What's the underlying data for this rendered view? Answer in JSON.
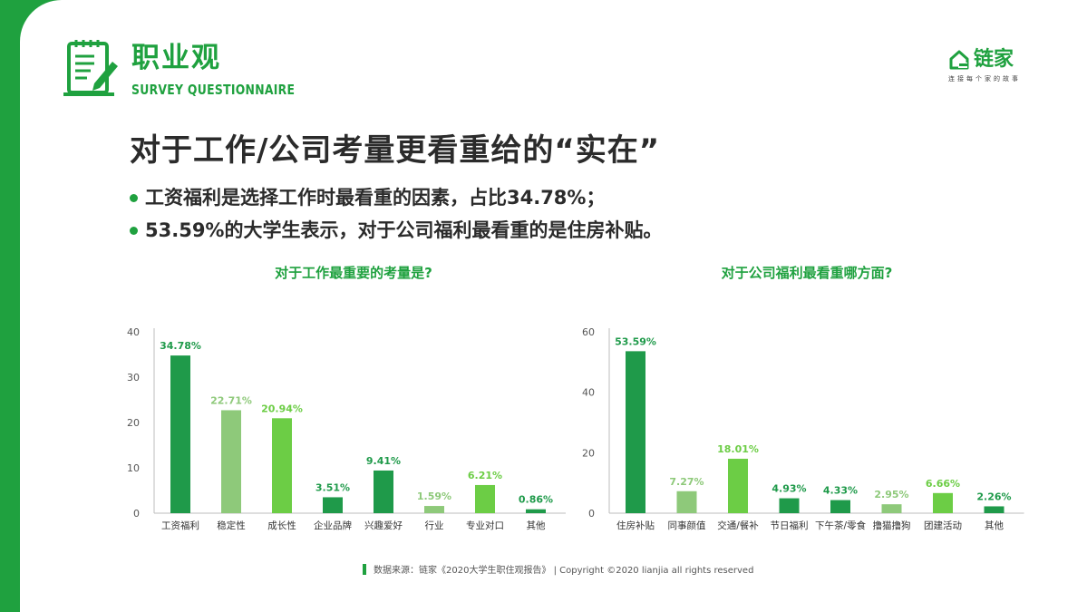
{
  "header": {
    "title": "职业观",
    "subtitle": "SURVEY QUESTIONNAIRE"
  },
  "brand": {
    "name": "链家",
    "slogan": "连接每个家的故事"
  },
  "slide": {
    "title": "对于工作/公司考量更看重给的“实在”",
    "bullets": [
      "工资福利是选择工作时最看重的因素，占比34.78%；",
      "53.59%的大学生表示，对于公司福利最看重的是住房补贴。"
    ]
  },
  "colors": {
    "brand_green": "#1fa13f",
    "dark_green": "#1f9a4a",
    "light_green": "#8ec97a",
    "medium_green": "#6ccd45"
  },
  "chart_data": [
    {
      "type": "bar",
      "title": "对于工作最重要的考量是?",
      "categories": [
        "工资福利",
        "稳定性",
        "成长性",
        "企业品牌",
        "兴趣爱好",
        "行业",
        "专业对口",
        "其他"
      ],
      "values": [
        34.78,
        22.71,
        20.94,
        3.51,
        9.41,
        1.59,
        6.21,
        0.86
      ],
      "data_labels": [
        "34.78%",
        "22.71%",
        "20.94%",
        "3.51%",
        "9.41%",
        "1.59%",
        "6.21%",
        "0.86%"
      ],
      "bar_colors": [
        "#1f9a4a",
        "#8ec97a",
        "#6ccd45",
        "#1f9a4a",
        "#1f9a4a",
        "#8ec97a",
        "#6ccd45",
        "#1f9a4a"
      ],
      "label_colors": [
        "#1f9a4a",
        "#8ec97a",
        "#6ccd45",
        "#1f9a4a",
        "#1f9a4a",
        "#8ec97a",
        "#6ccd45",
        "#1f9a4a"
      ],
      "yticks": [
        0,
        10,
        20,
        30,
        40
      ],
      "ylim": [
        0,
        40
      ],
      "grid": false
    },
    {
      "type": "bar",
      "title": "对于公司福利最看重哪方面?",
      "categories": [
        "住房补贴",
        "同事颜值",
        "交通/餐补",
        "节日福利",
        "下午茶/零食",
        "撸猫撸狗",
        "团建活动",
        "其他"
      ],
      "values": [
        53.59,
        7.27,
        18.01,
        4.93,
        4.33,
        2.95,
        6.66,
        2.26
      ],
      "data_labels": [
        "53.59%",
        "7.27%",
        "18.01%",
        "4.93%",
        "4.33%",
        "2.95%",
        "6.66%",
        "2.26%"
      ],
      "bar_colors": [
        "#1f9a4a",
        "#8ec97a",
        "#6ccd45",
        "#1f9a4a",
        "#1f9a4a",
        "#8ec97a",
        "#6ccd45",
        "#1f9a4a"
      ],
      "label_colors": [
        "#1f9a4a",
        "#8ec97a",
        "#6ccd45",
        "#1f9a4a",
        "#1f9a4a",
        "#8ec97a",
        "#6ccd45",
        "#1f9a4a"
      ],
      "yticks": [
        0,
        20,
        40,
        60
      ],
      "ylim": [
        0,
        60
      ],
      "grid": false
    }
  ],
  "footer": {
    "source": "数据来源：链家《2020大学生职住观报告》 | Copyright ©2020 lianjia all rights reserved"
  }
}
